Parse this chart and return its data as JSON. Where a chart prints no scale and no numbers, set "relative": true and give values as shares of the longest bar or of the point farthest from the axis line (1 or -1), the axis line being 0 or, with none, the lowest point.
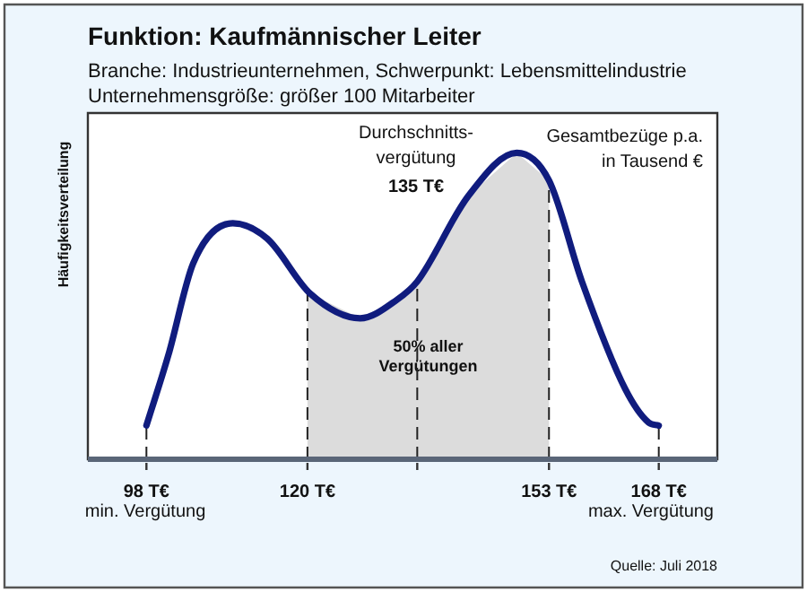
{
  "chart_data": {
    "type": "line",
    "relative": true,
    "title": "Funktion: Kaufmännischer Leiter",
    "subtitle": "Branche: Industrieunternehmen, Schwerpunkt: Lebensmittelindustrie\nUnternehmensgröße: größer 100 Mitarbeiter",
    "ylabel": "Häufigkeitsverteilung",
    "x": [
      98,
      101,
      104.4,
      109.8,
      114.5,
      120.4,
      127.2,
      132.2,
      135,
      142,
      148.6,
      153,
      157.5,
      163.4,
      166.6,
      168
    ],
    "series": [
      {
        "color": "#101c7e",
        "values": [
          0.11,
          0.34,
          0.64,
          0.77,
          0.72,
          0.54,
          0.46,
          0.52,
          0.58,
          0.86,
          1,
          0.91,
          0.58,
          0.23,
          0.12,
          0.11
        ]
      }
    ],
    "xlim": [
      90,
      176
    ],
    "xticks": [
      {
        "value": 98,
        "label": "98 T€"
      },
      {
        "value": 120,
        "label": "120 T€"
      },
      {
        "value": 135,
        "label": null
      },
      {
        "value": 153,
        "label": "153 T€"
      },
      {
        "value": 168,
        "label": "168 T€"
      }
    ],
    "line_style": "solid",
    "marker": "none",
    "legend": false,
    "ref_lines": [
      {
        "axis": "x",
        "value": 98,
        "line_style": "dashed"
      },
      {
        "axis": "x",
        "value": 120,
        "line_style": "dashed"
      },
      {
        "axis": "x",
        "value": 135,
        "line_style": "dashed"
      },
      {
        "axis": "x",
        "value": 153,
        "line_style": "dashed"
      },
      {
        "axis": "x",
        "value": 168,
        "line_style": "dashed"
      }
    ],
    "bands": [
      {
        "axis": "x",
        "from": 120,
        "to": 153,
        "label": "50% aller\nVergütungen",
        "color": "#dcdcdc"
      }
    ],
    "annotations": [
      "Durchschnitts-\nvergütung",
      "135 T€",
      "min. Vergütung",
      "max. Vergütung",
      "Gesamtbezüge p.a.\nin Tausend €",
      "Quelle: Juli 2018"
    ]
  }
}
